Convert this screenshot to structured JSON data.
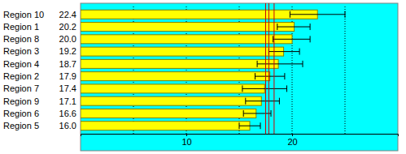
{
  "chart_data": {
    "type": "bar",
    "orientation": "horizontal",
    "categories": [
      "Region 10",
      "Region 1",
      "Region 8",
      "Region 3",
      "Region 4",
      "Region 2",
      "Region 7",
      "Region 9",
      "Region 6",
      "Region 5"
    ],
    "values": [
      22.4,
      20.2,
      20.0,
      19.2,
      18.7,
      17.9,
      17.4,
      17.1,
      16.6,
      16.0
    ],
    "value_labels": [
      "22.4",
      "20.2",
      "20.0",
      "19.2",
      "18.7",
      "17.9",
      "17.4",
      "17.1",
      "16.6",
      "16.0"
    ],
    "data_labels": true,
    "error_low": [
      19.8,
      18.6,
      18.2,
      17.8,
      16.7,
      16.5,
      15.3,
      15.6,
      15.4,
      15.0
    ],
    "error_high": [
      25.0,
      21.7,
      21.7,
      20.7,
      21.0,
      19.3,
      19.5,
      18.8,
      18.0,
      17.0
    ],
    "reference_lines": [
      17.5,
      17.8,
      18.3
    ],
    "color": "#ffff00",
    "xlim": [
      0,
      30
    ],
    "xticks": [
      10,
      20
    ],
    "grid_lines": [
      5,
      10,
      15,
      20,
      25
    ],
    "grid": true
  }
}
